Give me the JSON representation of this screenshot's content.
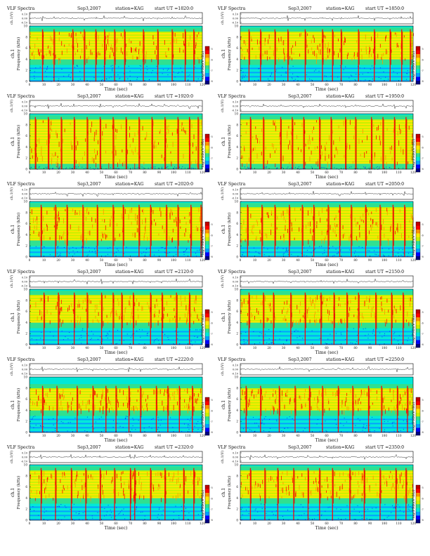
{
  "page": {
    "panel_labels": {
      "title": "VLF Spectra",
      "date": "Sep3,2007",
      "station": "station=KAG",
      "start_prefix": "start  UT =",
      "top_axis_label": "ch.1(V)",
      "y_axis_label_line1": "ch.1",
      "y_axis_label_line2": "Frequency  (kHz)",
      "x_axis_label": "Time  (sec)",
      "colorbar_label": "log(PSD)(V²/Hz)"
    },
    "colors": {
      "colormap": [
        "#000080",
        "#0000ff",
        "#00a0ff",
        "#00e8d8",
        "#30e090",
        "#c8f000",
        "#ffe800",
        "#ff9000",
        "#ff0000",
        "#c00000"
      ],
      "background": "#ffffff",
      "axis": "#000000",
      "waveform": "#333333"
    }
  },
  "chart_data": [
    {
      "type": "heatmap",
      "title": "VLF Spectra",
      "date": "Sep3,2007",
      "station": "station=KAG",
      "start_ut": "1820:0",
      "xlabel": "Time  (sec)",
      "ylabel": "Frequency  (kHz)",
      "xlim": [
        0,
        120
      ],
      "ylim": [
        0,
        10
      ],
      "x_ticks": [
        "0",
        "10",
        "20",
        "30",
        "40",
        "50",
        "60",
        "70",
        "80",
        "90",
        "100",
        "110",
        "120"
      ],
      "y_ticks": [
        "0",
        "2",
        "4",
        "6",
        "8",
        "10"
      ],
      "waveform_ticks": [
        "0.10",
        "0.00",
        "-0.10"
      ],
      "colorbar_ticks": [
        "-5",
        "-6",
        "-7",
        "-8"
      ],
      "active_band_khz": [
        4,
        9
      ],
      "event_times_sec": [
        9,
        17,
        30,
        38,
        46,
        52,
        59,
        66,
        79,
        89,
        99,
        108,
        114
      ]
    },
    {
      "type": "heatmap",
      "title": "VLF Spectra",
      "date": "Sep3,2007",
      "station": "station=KAG",
      "start_ut": "1850:0",
      "xlabel": "Time  (sec)",
      "ylabel": "Frequency  (kHz)",
      "xlim": [
        0,
        120
      ],
      "ylim": [
        0,
        10
      ],
      "x_ticks": [
        "0",
        "10",
        "20",
        "30",
        "40",
        "50",
        "60",
        "70",
        "80",
        "90",
        "100",
        "110",
        "120"
      ],
      "y_ticks": [
        "0",
        "2",
        "4",
        "6",
        "8",
        "10"
      ],
      "waveform_ticks": [
        "0.10",
        "0.00",
        "-0.10"
      ],
      "colorbar_ticks": [
        "-5",
        "-6",
        "-7",
        "-8"
      ],
      "active_band_khz": [
        4,
        9
      ],
      "event_times_sec": [
        6,
        14,
        24,
        33,
        45,
        57,
        64,
        70,
        82,
        93,
        104,
        112,
        118
      ]
    },
    {
      "type": "heatmap",
      "title": "VLF Spectra",
      "date": "Sep3,2007",
      "station": "station=KAG",
      "start_ut": "1920:0",
      "xlabel": "Time  (sec)",
      "ylabel": "Frequency  (kHz)",
      "xlim": [
        0,
        120
      ],
      "ylim": [
        0,
        10
      ],
      "x_ticks": [
        "0",
        "10",
        "20",
        "30",
        "40",
        "50",
        "60",
        "70",
        "80",
        "90",
        "100",
        "110",
        "120"
      ],
      "y_ticks": [
        "0",
        "2",
        "4",
        "6",
        "8",
        "10"
      ],
      "waveform_ticks": [
        "0.10",
        "0.00",
        "-0.10"
      ],
      "colorbar_ticks": [
        "-5",
        "-6",
        "-7",
        "-8"
      ],
      "active_band_khz": [
        1,
        9
      ],
      "event_times_sec": [
        4,
        13,
        22,
        31,
        40,
        49,
        58,
        67,
        76,
        85,
        94,
        103,
        111,
        117
      ]
    },
    {
      "type": "heatmap",
      "title": "VLF Spectra",
      "date": "Sep3,2007",
      "station": "station=KAG",
      "start_ut": "1950:0",
      "xlabel": "Time  (sec)",
      "ylabel": "Frequency  (kHz)",
      "xlim": [
        0,
        120
      ],
      "ylim": [
        0,
        10
      ],
      "x_ticks": [
        "0",
        "10",
        "20",
        "30",
        "40",
        "50",
        "60",
        "70",
        "80",
        "90",
        "100",
        "110",
        "120"
      ],
      "y_ticks": [
        "0",
        "2",
        "4",
        "6",
        "8",
        "10"
      ],
      "waveform_ticks": [
        "0.10",
        "0.00",
        "-0.10"
      ],
      "colorbar_ticks": [
        "-5",
        "-6",
        "-7",
        "-8"
      ],
      "active_band_khz": [
        1,
        9
      ],
      "event_times_sec": [
        7,
        16,
        28,
        36,
        44,
        55,
        63,
        73,
        80,
        91,
        99,
        107,
        115
      ]
    },
    {
      "type": "heatmap",
      "title": "VLF Spectra",
      "date": "Sep3,2007",
      "station": "station=KAG",
      "start_ut": "2020:0",
      "xlabel": "Time  (sec)",
      "ylabel": "Frequency  (kHz)",
      "xlim": [
        0,
        120
      ],
      "ylim": [
        0,
        10
      ],
      "x_ticks": [
        "0",
        "10",
        "20",
        "30",
        "40",
        "50",
        "60",
        "70",
        "80",
        "90",
        "100",
        "110",
        "120"
      ],
      "y_ticks": [
        "0",
        "2",
        "4",
        "6",
        "8",
        "10"
      ],
      "waveform_ticks": [
        "0.10",
        "0.00",
        "-0.10"
      ],
      "colorbar_ticks": [
        "-5",
        "-6",
        "-7",
        "-8"
      ],
      "active_band_khz": [
        3,
        9
      ],
      "event_times_sec": [
        8,
        18,
        26,
        37,
        47,
        58,
        65,
        76,
        84,
        95,
        103,
        112,
        119
      ]
    },
    {
      "type": "heatmap",
      "title": "VLF Spectra",
      "date": "Sep3,2007",
      "station": "station=KAG",
      "start_ut": "2050:0",
      "xlabel": "Time  (sec)",
      "ylabel": "Frequency  (kHz)",
      "xlim": [
        0,
        120
      ],
      "ylim": [
        0,
        10
      ],
      "x_ticks": [
        "0",
        "10",
        "20",
        "30",
        "40",
        "50",
        "60",
        "70",
        "80",
        "90",
        "100",
        "110",
        "120"
      ],
      "y_ticks": [
        "0",
        "2",
        "4",
        "6",
        "8",
        "10"
      ],
      "waveform_ticks": [
        "0.10",
        "0.00",
        "-0.10"
      ],
      "colorbar_ticks": [
        "-5",
        "-6",
        "-7",
        "-8"
      ],
      "active_band_khz": [
        3,
        9
      ],
      "event_times_sec": [
        5,
        15,
        24,
        34,
        43,
        51,
        61,
        69,
        77,
        87,
        97,
        106,
        114
      ]
    },
    {
      "type": "heatmap",
      "title": "VLF Spectra",
      "date": "Sep3,2007",
      "station": "station=KAG",
      "start_ut": "2120:0",
      "xlabel": "Time  (sec)",
      "ylabel": "Frequency  (kHz)",
      "xlim": [
        0,
        120
      ],
      "ylim": [
        0,
        10
      ],
      "x_ticks": [
        "0",
        "10",
        "20",
        "30",
        "40",
        "50",
        "60",
        "70",
        "80",
        "90",
        "100",
        "110",
        "120"
      ],
      "y_ticks": [
        "0",
        "2",
        "4",
        "6",
        "8",
        "10"
      ],
      "waveform_ticks": [
        "0.10",
        "0.00",
        "-0.10"
      ],
      "colorbar_ticks": [
        "-5",
        "-6",
        "-7",
        "-8"
      ],
      "active_band_khz": [
        4,
        9
      ],
      "event_times_sec": [
        10,
        20,
        31,
        40,
        50,
        58,
        64,
        72,
        84,
        92,
        102,
        111
      ]
    },
    {
      "type": "heatmap",
      "title": "VLF Spectra",
      "date": "Sep3,2007",
      "station": "station=KAG",
      "start_ut": "2150:0",
      "xlabel": "Time  (sec)",
      "ylabel": "Frequency  (kHz)",
      "xlim": [
        0,
        120
      ],
      "ylim": [
        0,
        10
      ],
      "x_ticks": [
        "0",
        "10",
        "20",
        "30",
        "40",
        "50",
        "60",
        "70",
        "80",
        "90",
        "100",
        "110",
        "120"
      ],
      "y_ticks": [
        "0",
        "2",
        "4",
        "6",
        "8",
        "10"
      ],
      "waveform_ticks": [
        "0.10",
        "0.00",
        "-0.10"
      ],
      "colorbar_ticks": [
        "-5",
        "-6",
        "-7",
        "-8"
      ],
      "active_band_khz": [
        4,
        9
      ],
      "event_times_sec": [
        6,
        16,
        23,
        35,
        45,
        56,
        65,
        74,
        82,
        94,
        105,
        113
      ]
    },
    {
      "type": "heatmap",
      "title": "VLF Spectra",
      "date": "Sep3,2007",
      "station": "station=KAG",
      "start_ut": "2220:0",
      "xlabel": "Time  (sec)",
      "ylabel": "Frequency  (kHz)",
      "xlim": [
        0,
        120
      ],
      "ylim": [
        0,
        10
      ],
      "x_ticks": [
        "0",
        "10",
        "20",
        "30",
        "40",
        "50",
        "60",
        "70",
        "80",
        "90",
        "100",
        "110",
        "120"
      ],
      "y_ticks": [
        "0",
        "2",
        "4",
        "6",
        "8",
        "10"
      ],
      "waveform_ticks": [
        "0.10",
        "0.00",
        "-0.10"
      ],
      "colorbar_ticks": [
        "-5",
        "-6",
        "-7",
        "-8"
      ],
      "active_band_khz": [
        4,
        8
      ],
      "event_times_sec": [
        9,
        19,
        33,
        44,
        53,
        60,
        69,
        77,
        88,
        96,
        104,
        113
      ]
    },
    {
      "type": "heatmap",
      "title": "VLF Spectra",
      "date": "Sep3,2007",
      "station": "station=KAG",
      "start_ut": "2250:0",
      "xlabel": "Time  (sec)",
      "ylabel": "Frequency  (kHz)",
      "xlim": [
        0,
        120
      ],
      "ylim": [
        0,
        10
      ],
      "x_ticks": [
        "0",
        "10",
        "20",
        "30",
        "40",
        "50",
        "60",
        "70",
        "80",
        "90",
        "100",
        "110",
        "120"
      ],
      "y_ticks": [
        "0",
        "2",
        "4",
        "6",
        "8",
        "10"
      ],
      "waveform_ticks": [
        "0.10",
        "0.00",
        "-0.10"
      ],
      "colorbar_ticks": [
        "-5",
        "-6",
        "-7",
        "-8"
      ],
      "active_band_khz": [
        4,
        8
      ],
      "event_times_sec": [
        4,
        14,
        27,
        38,
        48,
        57,
        68,
        78,
        89,
        98,
        109,
        116
      ]
    },
    {
      "type": "heatmap",
      "title": "VLF Spectra",
      "date": "Sep3,2007",
      "station": "station=KAG",
      "start_ut": "2320:0",
      "xlabel": "Time  (sec)",
      "ylabel": "Frequency  (kHz)",
      "xlim": [
        0,
        120
      ],
      "ylim": [
        0,
        10
      ],
      "x_ticks": [
        "0",
        "10",
        "20",
        "30",
        "40",
        "50",
        "60",
        "70",
        "80",
        "90",
        "100",
        "110",
        "120"
      ],
      "y_ticks": [
        "0",
        "2",
        "4",
        "6",
        "8",
        "10"
      ],
      "waveform_ticks": [
        "0.10",
        "0.00",
        "-0.10"
      ],
      "colorbar_ticks": [
        "-5",
        "-6",
        "-7",
        "-8"
      ],
      "active_band_khz": [
        4,
        9
      ],
      "event_times_sec": [
        8,
        18,
        29,
        39,
        49,
        59,
        70,
        73,
        84,
        94,
        107,
        114
      ]
    },
    {
      "type": "heatmap",
      "title": "VLF Spectra",
      "date": "Sep3,2007",
      "station": "station=KAG",
      "start_ut": "2350:0",
      "xlabel": "Time  (sec)",
      "ylabel": "Frequency  (kHz)",
      "xlim": [
        0,
        120
      ],
      "ylim": [
        0,
        10
      ],
      "x_ticks": [
        "0",
        "10",
        "20",
        "30",
        "40",
        "50",
        "60",
        "70",
        "80",
        "90",
        "100",
        "110",
        "120"
      ],
      "y_ticks": [
        "0",
        "2",
        "4",
        "6",
        "8",
        "10"
      ],
      "waveform_ticks": [
        "0.10",
        "0.00",
        "-0.10"
      ],
      "colorbar_ticks": [
        "-5",
        "-6",
        "-7",
        "-8"
      ],
      "active_band_khz": [
        4,
        9
      ],
      "event_times_sec": [
        7,
        17,
        26,
        37,
        47,
        55,
        64,
        76,
        86,
        97,
        108,
        115
      ]
    }
  ]
}
